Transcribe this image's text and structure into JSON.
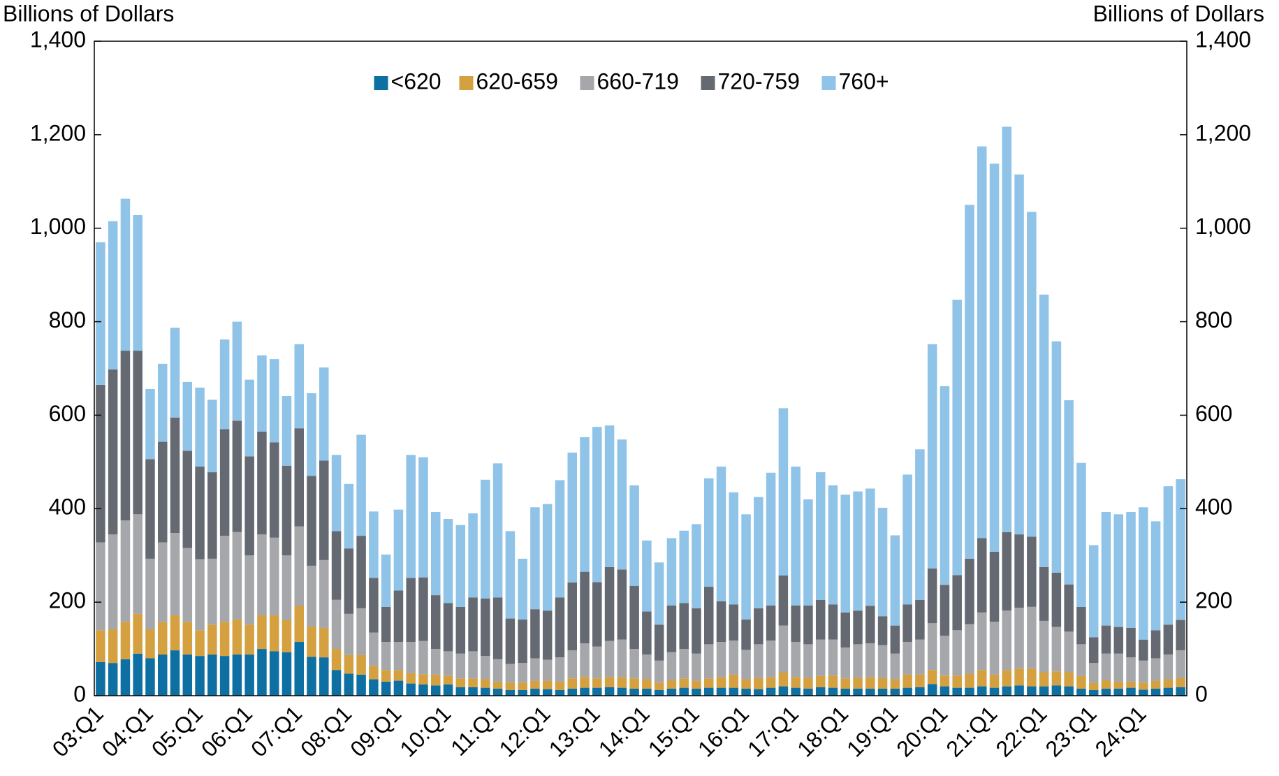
{
  "chart_data": {
    "type": "stacked_bar",
    "ylabel": "Billions of Dollars",
    "y2label": "Billions of Dollars",
    "categories": [
      "03:Q1",
      null,
      null,
      null,
      "04:Q1",
      null,
      null,
      null,
      "05:Q1",
      null,
      null,
      null,
      "06:Q1",
      null,
      null,
      null,
      "07:Q1",
      null,
      null,
      null,
      "08:Q1",
      null,
      null,
      null,
      "09:Q1",
      null,
      null,
      null,
      "10:Q1",
      null,
      null,
      null,
      "11:Q1",
      null,
      null,
      null,
      "12:Q1",
      null,
      null,
      null,
      "13:Q1",
      null,
      null,
      null,
      "14:Q1",
      null,
      null,
      null,
      "15:Q1",
      null,
      null,
      null,
      "16:Q1",
      null,
      null,
      null,
      "17:Q1",
      null,
      null,
      null,
      "18:Q1",
      null,
      null,
      null,
      "19:Q1",
      null,
      null,
      null,
      "20:Q1",
      null,
      null,
      null,
      "21:Q1",
      null,
      null,
      null,
      "22:Q1",
      null,
      null,
      null,
      "23:Q1",
      null,
      null,
      null,
      "24:Q1",
      null,
      null,
      null
    ],
    "series": [
      {
        "name": "<620",
        "color": "#0e6fa2",
        "values": [
          72,
          70,
          78,
          90,
          80,
          88,
          97,
          88,
          85,
          88,
          85,
          88,
          88,
          100,
          95,
          93,
          115,
          83,
          82,
          55,
          47,
          45,
          35,
          30,
          32,
          26,
          24,
          22,
          24,
          18,
          18,
          17,
          15,
          12,
          12,
          15,
          14,
          12,
          15,
          17,
          17,
          18,
          17,
          15,
          15,
          12,
          15,
          17,
          15,
          17,
          17,
          17,
          15,
          14,
          17,
          20,
          17,
          15,
          18,
          17,
          15,
          15,
          15,
          15,
          15,
          17,
          18,
          25,
          20,
          17,
          17,
          20,
          17,
          20,
          22,
          20,
          20,
          22,
          20,
          15,
          12,
          15,
          15,
          17,
          13,
          15,
          17,
          18
        ]
      },
      {
        "name": "620-659",
        "color": "#d4a040",
        "values": [
          68,
          72,
          80,
          85,
          62,
          70,
          75,
          70,
          55,
          64,
          73,
          75,
          64,
          72,
          77,
          69,
          77,
          65,
          63,
          45,
          40,
          42,
          28,
          25,
          23,
          22,
          22,
          23,
          19,
          19,
          19,
          18,
          15,
          16,
          16,
          17,
          18,
          18,
          22,
          23,
          20,
          22,
          23,
          22,
          20,
          16,
          18,
          20,
          17,
          20,
          23,
          28,
          20,
          24,
          23,
          30,
          23,
          23,
          24,
          26,
          22,
          23,
          25,
          23,
          20,
          28,
          27,
          30,
          23,
          26,
          30,
          35,
          28,
          35,
          36,
          38,
          30,
          30,
          30,
          27,
          15,
          18,
          15,
          13,
          15,
          17,
          18,
          20
        ]
      },
      {
        "name": "660-719",
        "color": "#a5a7ab",
        "values": [
          188,
          203,
          217,
          213,
          151,
          170,
          176,
          158,
          152,
          141,
          184,
          187,
          148,
          173,
          166,
          138,
          170,
          130,
          145,
          105,
          88,
          100,
          72,
          60,
          60,
          67,
          71,
          55,
          52,
          53,
          58,
          50,
          48,
          40,
          42,
          48,
          45,
          52,
          60,
          72,
          68,
          77,
          80,
          63,
          53,
          47,
          60,
          63,
          58,
          73,
          75,
          73,
          63,
          72,
          78,
          100,
          75,
          72,
          78,
          77,
          66,
          72,
          72,
          70,
          55,
          70,
          75,
          100,
          85,
          97,
          106,
          123,
          113,
          127,
          130,
          132,
          110,
          95,
          87,
          68,
          43,
          57,
          60,
          52,
          47,
          48,
          53,
          59
        ]
      },
      {
        "name": "720-759",
        "color": "#656a72",
        "values": [
          337,
          353,
          363,
          350,
          213,
          215,
          247,
          208,
          198,
          185,
          228,
          238,
          212,
          220,
          204,
          192,
          210,
          192,
          213,
          147,
          140,
          155,
          117,
          75,
          110,
          137,
          136,
          115,
          103,
          100,
          115,
          123,
          132,
          97,
          93,
          105,
          105,
          128,
          145,
          153,
          138,
          158,
          150,
          135,
          92,
          77,
          100,
          98,
          97,
          123,
          87,
          77,
          65,
          77,
          75,
          107,
          78,
          83,
          85,
          75,
          75,
          72,
          80,
          62,
          60,
          80,
          85,
          117,
          109,
          118,
          140,
          159,
          150,
          168,
          157,
          150,
          115,
          116,
          101,
          80,
          55,
          60,
          57,
          63,
          45,
          60,
          64,
          65
        ]
      },
      {
        "name": "760+",
        "color": "#8fc3e8",
        "values": [
          305,
          317,
          325,
          290,
          150,
          167,
          192,
          147,
          169,
          155,
          192,
          212,
          164,
          163,
          178,
          149,
          180,
          177,
          199,
          163,
          138,
          216,
          142,
          112,
          173,
          263,
          257,
          178,
          180,
          175,
          180,
          254,
          287,
          187,
          130,
          218,
          228,
          251,
          278,
          288,
          332,
          303,
          278,
          215,
          152,
          133,
          144,
          155,
          180,
          232,
          288,
          240,
          225,
          238,
          284,
          358,
          297,
          227,
          273,
          255,
          252,
          255,
          251,
          232,
          193,
          278,
          322,
          480,
          425,
          589,
          757,
          838,
          830,
          867,
          770,
          695,
          583,
          495,
          394,
          308,
          197,
          243,
          241,
          248,
          283,
          233,
          296,
          301
        ]
      }
    ],
    "ylim": [
      0,
      1400
    ],
    "yticks": [
      0,
      200,
      400,
      600,
      800,
      {
        "value": 1000,
        "label": "1,000"
      },
      {
        "value": 1200,
        "label": "1,200"
      },
      {
        "value": 1400,
        "label": "1,400"
      }
    ],
    "y2lim": [
      0,
      1400
    ],
    "y2ticks": [
      0,
      200,
      400,
      600,
      800,
      {
        "value": 1000,
        "label": "1,000"
      },
      {
        "value": 1200,
        "label": "1,200"
      },
      {
        "value": 1400,
        "label": "1,400"
      }
    ],
    "legend": "upper center"
  }
}
